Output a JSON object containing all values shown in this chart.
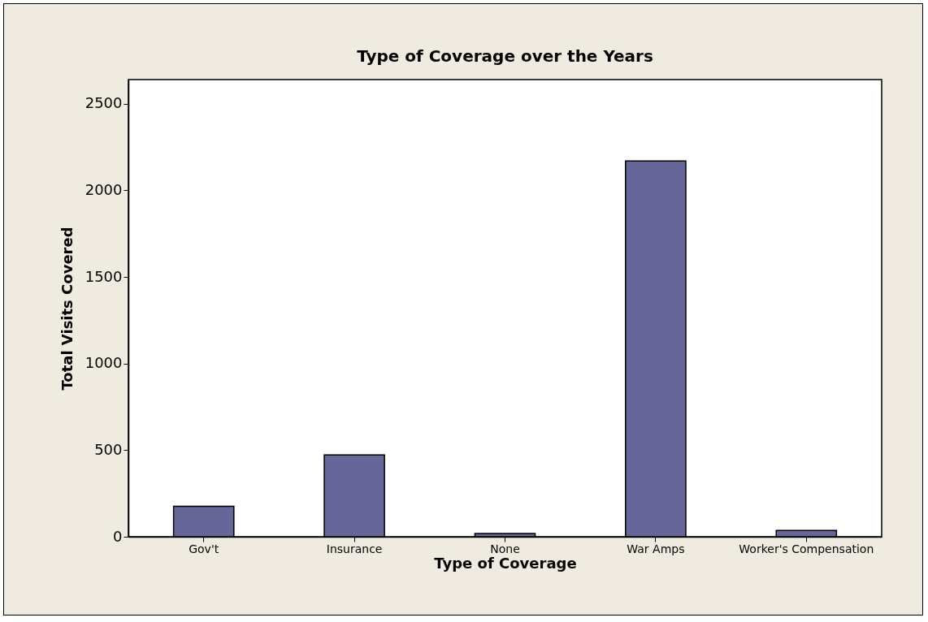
{
  "chart_data": {
    "type": "bar",
    "title": "Type of Coverage over the Years",
    "xlabel": "Type of Coverage",
    "ylabel": "Total Visits Covered",
    "categories": [
      "Gov't",
      "Insurance",
      "None",
      "War Amps",
      "Worker's Compensation"
    ],
    "values": [
      176,
      472,
      19,
      2170,
      36
    ],
    "color": "#666699",
    "ylim": [
      0,
      2640
    ],
    "yticks": [
      0,
      500,
      1000,
      1500,
      2000,
      2500
    ],
    "grid": false
  }
}
